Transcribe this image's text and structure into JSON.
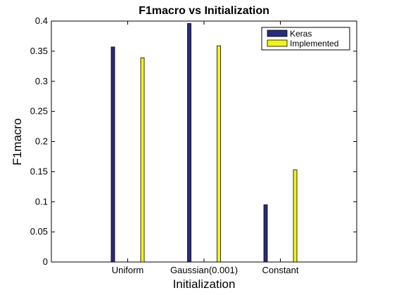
{
  "chart_data": {
    "type": "bar",
    "title": "F1macro vs Initialization",
    "xlabel": "Initialization",
    "ylabel": "F1macro",
    "categories": [
      "Uniform",
      "Gaussian(0.001)",
      "Constant"
    ],
    "series": [
      {
        "name": "Keras",
        "color": "#2b2b7a",
        "values": [
          0.357,
          0.396,
          0.095
        ]
      },
      {
        "name": "Implemented",
        "color": "#f2f21a",
        "values": [
          0.339,
          0.359,
          0.153
        ]
      }
    ],
    "ylim": [
      0,
      0.4
    ],
    "yticks": [
      0,
      0.05,
      0.1,
      0.15,
      0.2,
      0.25,
      0.3,
      0.35,
      0.4
    ],
    "ytick_labels": [
      "0",
      "0.05",
      "0.1",
      "0.15",
      "0.2",
      "0.25",
      "0.3",
      "0.35",
      "0.4"
    ],
    "grid": false,
    "legend_position": "top-right"
  }
}
